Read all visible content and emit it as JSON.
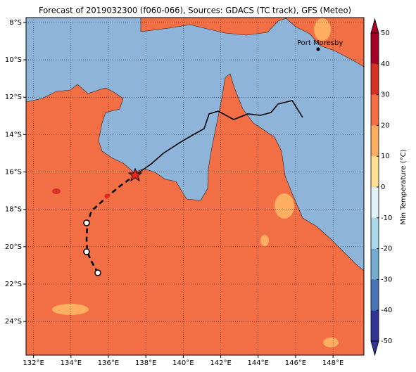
{
  "title": "Forecast of 2019032300 (f060-066), Sources: GDACS (TC track), GFS (Meteo)",
  "map": {
    "xlim": [
      131.6,
      149.65
    ],
    "ylim": [
      -25.8,
      -7.74
    ],
    "xticks": [
      {
        "value": 132,
        "label": "132°E"
      },
      {
        "value": 134,
        "label": "134°E"
      },
      {
        "value": 136,
        "label": "136°E"
      },
      {
        "value": 138,
        "label": "138°E"
      },
      {
        "value": 140,
        "label": "140°E"
      },
      {
        "value": 142,
        "label": "142°E"
      },
      {
        "value": 144,
        "label": "144°E"
      },
      {
        "value": 146,
        "label": "146°E"
      },
      {
        "value": 148,
        "label": "148°E"
      }
    ],
    "yticks": [
      {
        "value": -8,
        "label": "8°S"
      },
      {
        "value": -10,
        "label": "10°S"
      },
      {
        "value": -12,
        "label": "12°S"
      },
      {
        "value": -14,
        "label": "14°S"
      },
      {
        "value": -16,
        "label": "16°S"
      },
      {
        "value": -18,
        "label": "18°S"
      },
      {
        "value": -20,
        "label": "20°S"
      },
      {
        "value": -22,
        "label": "22°S"
      },
      {
        "value": -24,
        "label": "24°S"
      }
    ],
    "grid": true,
    "place": "Port Moresby"
  },
  "colorbar": {
    "label": "Min Temperature (°C)",
    "lim": [
      -50,
      50
    ],
    "ticks": [
      -50,
      -40,
      -30,
      -20,
      -10,
      0,
      10,
      20,
      30,
      40,
      50
    ],
    "colors": [
      "#313695",
      "#4575b4",
      "#74add1",
      "#abd9e9",
      "#e0f3f8",
      "#fee090",
      "#fdae61",
      "#f46d43",
      "#d73027",
      "#a50026"
    ]
  }
}
